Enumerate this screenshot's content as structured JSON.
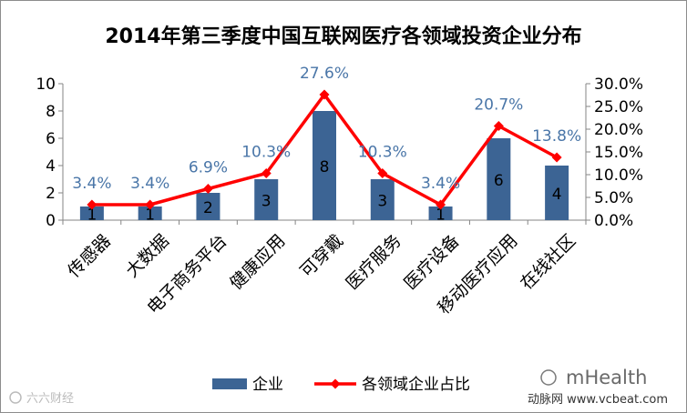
{
  "chart_data": {
    "type": "bar+line",
    "title": "2014年第三季度中国互联网医疗各领域投资企业分布",
    "categories": [
      "传感器",
      "大数据",
      "电子商务平台",
      "健康应用",
      "可穿戴",
      "医疗服务",
      "医疗设备",
      "移动医疗应用",
      "在线社区"
    ],
    "series": [
      {
        "name": "企业",
        "type": "bar",
        "axis": "left",
        "color": "#3c6494",
        "values": [
          1,
          1,
          2,
          3,
          8,
          3,
          1,
          6,
          4
        ],
        "labels": [
          "1",
          "1",
          "2",
          "3",
          "8",
          "3",
          "1",
          "6",
          "4"
        ]
      },
      {
        "name": "各领域企业占比",
        "type": "line",
        "axis": "right",
        "color": "#ff0000",
        "values": [
          3.4,
          3.4,
          6.9,
          10.3,
          27.6,
          10.3,
          3.4,
          20.7,
          13.8
        ],
        "labels": [
          "3.4%",
          "3.4%",
          "6.9%",
          "10.3%",
          "27.6%",
          "10.3%",
          "3.4%",
          "20.7%",
          "13.8%"
        ]
      }
    ],
    "left_axis": {
      "min": 0,
      "max": 10,
      "ticks": [
        "0",
        "2",
        "4",
        "6",
        "8",
        "10"
      ]
    },
    "right_axis": {
      "min": 0,
      "max": 30,
      "ticks": [
        "0.0%",
        "5.0%",
        "10.0%",
        "15.0%",
        "20.0%",
        "25.0%",
        "30.0%"
      ]
    },
    "grid": false,
    "legend_position": "bottom",
    "label_color": "#4a76a8"
  },
  "watermarks": {
    "bottom_left": "六六财经",
    "bottom_right_brand": "mHealth",
    "bottom_right_site": "动脉网 www.vcbeat.com"
  }
}
